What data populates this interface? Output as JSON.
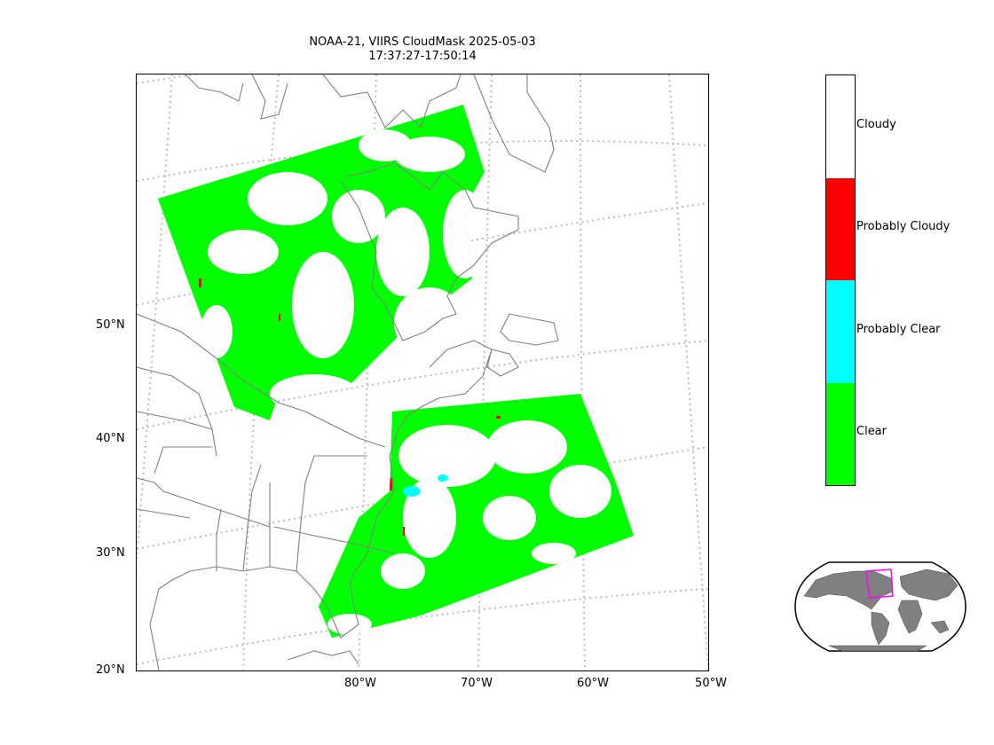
{
  "title": {
    "line1": "NOAA-21, VIIRS CloudMask 2025-05-03",
    "line2": "17:37:27-17:50:14"
  },
  "map": {
    "lat_labels": [
      "50°N",
      "40°N",
      "30°N",
      "20°N"
    ],
    "lon_labels": [
      "80°W",
      "70°W",
      "60°W",
      "50°W"
    ]
  },
  "legend": {
    "items": [
      {
        "label": "Cloudy",
        "color": "#ffffff"
      },
      {
        "label": "Probably Cloudy",
        "color": "#ff0000"
      },
      {
        "label": "Probably Clear",
        "color": "#00ffff"
      },
      {
        "label": "Clear",
        "color": "#00ff00"
      }
    ]
  },
  "colors": {
    "coastline": "#808080",
    "graticule": "#bbbbbb",
    "inset_land": "#808080",
    "inset_box": "#ff00ff"
  }
}
